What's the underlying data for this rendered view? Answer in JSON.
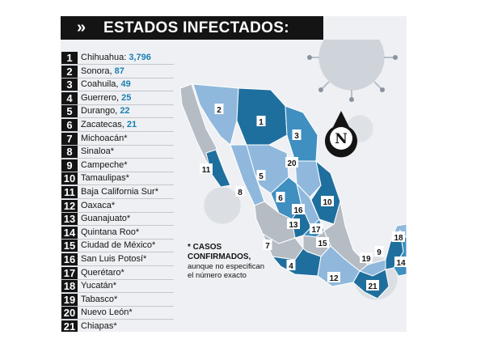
{
  "header": {
    "chevrons": "»",
    "title": "ESTADOS INFECTADOS:"
  },
  "colors": {
    "dark": "#1f6f9e",
    "mid": "#3f8fc0",
    "light": "#8fb8dc",
    "gray": "#b6bcc4",
    "label_bg": "#ffffff"
  },
  "list": [
    {
      "n": "1",
      "name": "Chihuahua: ",
      "count": "3,796"
    },
    {
      "n": "2",
      "name": "Sonora, ",
      "count": "87"
    },
    {
      "n": "3",
      "name": "Coahuila, ",
      "count": "49"
    },
    {
      "n": "4",
      "name": "Guerrero, ",
      "count": "25"
    },
    {
      "n": "5",
      "name": "Durango, ",
      "count": "22"
    },
    {
      "n": "6",
      "name": "Zacatecas, ",
      "count": "21"
    },
    {
      "n": "7",
      "name": "Michoacán*",
      "count": ""
    },
    {
      "n": "8",
      "name": "Sinaloa*",
      "count": ""
    },
    {
      "n": "9",
      "name": "Campeche*",
      "count": ""
    },
    {
      "n": "10",
      "name": "Tamaulipas*",
      "count": ""
    },
    {
      "n": "11",
      "name": "Baja California Sur*",
      "count": ""
    },
    {
      "n": "12",
      "name": "Oaxaca*",
      "count": ""
    },
    {
      "n": "13",
      "name": "Guanajuato*",
      "count": ""
    },
    {
      "n": "14",
      "name": "Quintana Roo*",
      "count": ""
    },
    {
      "n": "15",
      "name": "Ciudad de México*",
      "count": ""
    },
    {
      "n": "16",
      "name": "San Luis Potosí*",
      "count": ""
    },
    {
      "n": "17",
      "name": "Querétaro*",
      "count": ""
    },
    {
      "n": "18",
      "name": "Yucatán*",
      "count": ""
    },
    {
      "n": "19",
      "name": "Tabasco*",
      "count": ""
    },
    {
      "n": "20",
      "name": "Nuevo León*",
      "count": ""
    },
    {
      "n": "21",
      "name": "Chiapas*",
      "count": ""
    }
  ],
  "compass": {
    "letter": "N",
    "icon": "north-compass-icon"
  },
  "note": {
    "line1": "* CASOS",
    "line2": "CONFIRMADOS,",
    "line3": "aunque no especifican",
    "line4": "el número exacto"
  },
  "map_labels": [
    {
      "n": "1",
      "state": "chihuahua"
    },
    {
      "n": "2",
      "state": "sonora"
    },
    {
      "n": "3",
      "state": "coahuila"
    },
    {
      "n": "4",
      "state": "guerrero"
    },
    {
      "n": "5",
      "state": "durango"
    },
    {
      "n": "6",
      "state": "zacatecas"
    },
    {
      "n": "7",
      "state": "michoacan"
    },
    {
      "n": "8",
      "state": "sinaloa"
    },
    {
      "n": "9",
      "state": "campeche"
    },
    {
      "n": "10",
      "state": "tamaulipas"
    },
    {
      "n": "11",
      "state": "baja-california-sur"
    },
    {
      "n": "12",
      "state": "oaxaca"
    },
    {
      "n": "13",
      "state": "guanajuato"
    },
    {
      "n": "14",
      "state": "quintana-roo"
    },
    {
      "n": "15",
      "state": "ciudad-de-mexico"
    },
    {
      "n": "16",
      "state": "san-luis-potosi"
    },
    {
      "n": "17",
      "state": "queretaro"
    },
    {
      "n": "18",
      "state": "yucatan"
    },
    {
      "n": "19",
      "state": "tabasco"
    },
    {
      "n": "20",
      "state": "nuevo-leon"
    },
    {
      "n": "21",
      "state": "chiapas"
    }
  ]
}
